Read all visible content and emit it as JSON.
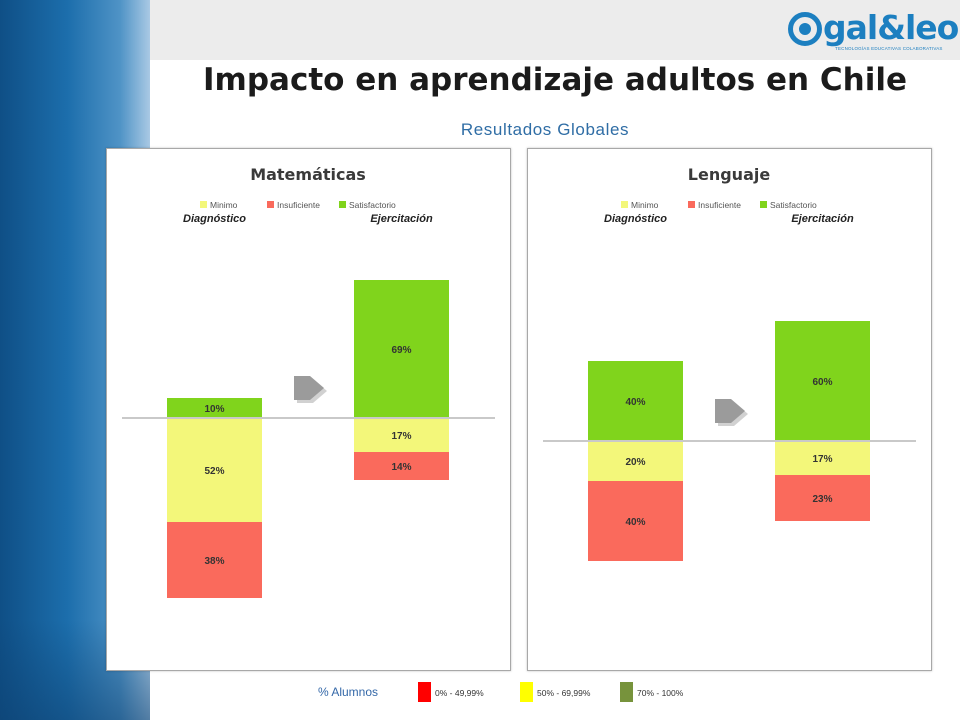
{
  "title": "Impacto en aprendizaje adultos en Chile",
  "subtitle": "Resultados Globales",
  "logo": {
    "brand": "gal&leo",
    "tagline": "TECNOLOGÍAS EDUCATIVAS COLABORATIVAS"
  },
  "colors": {
    "minimo": "#f3f77a",
    "insuficiente": "#fa6a5c",
    "satisfactorio": "#80d41c",
    "arrow": "#9b9b9b",
    "baseline": "#c9c9c9",
    "band_dark": "#0f4f86"
  },
  "chart_data": [
    {
      "type": "bar",
      "stacked": "diverging",
      "title": "Matemáticas",
      "legend": [
        "Minimo",
        "Insuficiente",
        "Satisfactorio"
      ],
      "legend_position": "top",
      "categories": [
        "Diagnóstico",
        "Ejercitación"
      ],
      "series": [
        {
          "name": "Satisfactorio",
          "values": [
            10,
            69
          ],
          "labels": [
            "10%",
            "69%"
          ]
        },
        {
          "name": "Minimo",
          "values": [
            52,
            17
          ],
          "labels": [
            "52%",
            "17%"
          ]
        },
        {
          "name": "Insuficiente",
          "values": [
            38,
            14
          ],
          "labels": [
            "38%",
            "14%"
          ]
        }
      ]
    },
    {
      "type": "bar",
      "stacked": "diverging",
      "title": "Lenguaje",
      "legend": [
        "Minimo",
        "Insuficiente",
        "Satisfactorio"
      ],
      "legend_position": "top",
      "categories": [
        "Diagnóstico",
        "Ejercitación"
      ],
      "series": [
        {
          "name": "Satisfactorio",
          "values": [
            40,
            60
          ],
          "labels": [
            "40%",
            "60%"
          ]
        },
        {
          "name": "Minimo",
          "values": [
            20,
            17
          ],
          "labels": [
            "20%",
            "17%"
          ]
        },
        {
          "name": "Insuficiente",
          "values": [
            40,
            23
          ],
          "labels": [
            "40%",
            "23%"
          ]
        }
      ]
    }
  ],
  "bottom_legend": {
    "label": "% Alumnos",
    "items": [
      {
        "label": "0% - 49,99%",
        "color": "#ff0000"
      },
      {
        "label": "50% - 69,99%",
        "color": "#ffff00"
      },
      {
        "label": "70% - 100%",
        "color": "#77933c"
      }
    ]
  }
}
